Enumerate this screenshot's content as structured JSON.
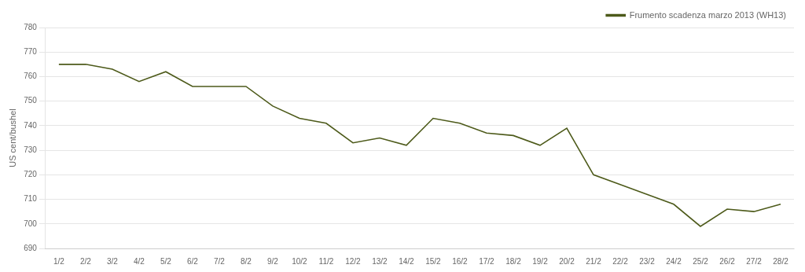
{
  "chart_data": {
    "type": "line",
    "categories": [
      "1/2",
      "2/2",
      "3/2",
      "4/2",
      "5/2",
      "6/2",
      "7/2",
      "8/2",
      "9/2",
      "10/2",
      "11/2",
      "12/2",
      "13/2",
      "14/2",
      "15/2",
      "16/2",
      "17/2",
      "18/2",
      "19/2",
      "20/2",
      "21/2",
      "22/2",
      "23/2",
      "24/2",
      "25/2",
      "26/2",
      "27/2",
      "28/2"
    ],
    "series": [
      {
        "name": "Frumento scadenza marzo 2013 (WH13)",
        "color": "#4d5a1a",
        "values": [
          765,
          765,
          763,
          758,
          762,
          756,
          756,
          756,
          748,
          743,
          741,
          733,
          735,
          732,
          743,
          741,
          737,
          736,
          732,
          739,
          720,
          716,
          712,
          708,
          699,
          706,
          705,
          708
        ]
      }
    ],
    "y_label": "US cent/bushel",
    "ylim": [
      690,
      780
    ],
    "yticks": [
      690,
      700,
      710,
      720,
      730,
      740,
      750,
      760,
      770,
      780
    ],
    "grid": true,
    "legend": "upper right"
  }
}
